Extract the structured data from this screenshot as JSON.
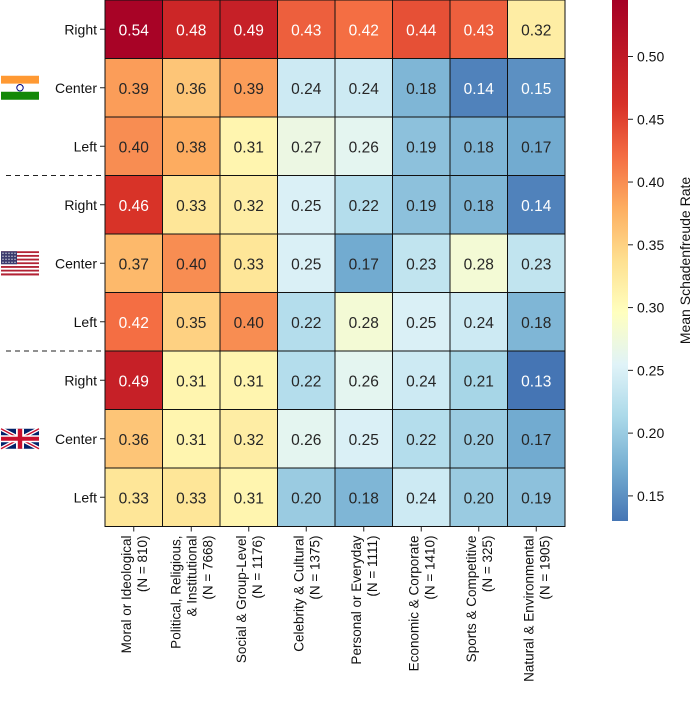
{
  "chart_data": {
    "type": "heatmap",
    "title": "",
    "columns": [
      {
        "label": "Moral or Ideological",
        "n_label": "(N = 810)"
      },
      {
        "label": "Political, Religious,\n& Institutional",
        "n_label": "(N = 7668)"
      },
      {
        "label": "Social & Group-Level",
        "n_label": "(N = 1176)"
      },
      {
        "label": "Celebrity & Cultural",
        "n_label": "(N = 1375)"
      },
      {
        "label": "Personal or Everyday",
        "n_label": "(N = 1111)"
      },
      {
        "label": "Economic & Corporate",
        "n_label": "(N = 1410)"
      },
      {
        "label": "Sports & Competitive",
        "n_label": "(N = 325)"
      },
      {
        "label": "Natural & Environmental",
        "n_label": "(N = 1905)"
      }
    ],
    "groups": [
      {
        "country": "India",
        "flag_icon": "india-flag-icon",
        "rows": [
          {
            "label": "Right",
            "values": [
              0.54,
              0.48,
              0.49,
              0.43,
              0.42,
              0.44,
              0.43,
              0.32
            ]
          },
          {
            "label": "Center",
            "values": [
              0.39,
              0.36,
              0.39,
              0.24,
              0.24,
              0.18,
              0.14,
              0.15
            ]
          },
          {
            "label": "Left",
            "values": [
              0.4,
              0.38,
              0.31,
              0.27,
              0.26,
              0.19,
              0.18,
              0.17
            ]
          }
        ]
      },
      {
        "country": "United States",
        "flag_icon": "us-flag-icon",
        "rows": [
          {
            "label": "Right",
            "values": [
              0.46,
              0.33,
              0.32,
              0.25,
              0.22,
              0.19,
              0.18,
              0.14
            ]
          },
          {
            "label": "Center",
            "values": [
              0.37,
              0.4,
              0.33,
              0.25,
              0.17,
              0.23,
              0.28,
              0.23
            ]
          },
          {
            "label": "Left",
            "values": [
              0.42,
              0.35,
              0.4,
              0.22,
              0.28,
              0.25,
              0.24,
              0.18
            ]
          }
        ]
      },
      {
        "country": "United Kingdom",
        "flag_icon": "uk-flag-icon",
        "rows": [
          {
            "label": "Right",
            "values": [
              0.49,
              0.31,
              0.31,
              0.22,
              0.26,
              0.24,
              0.21,
              0.13
            ]
          },
          {
            "label": "Center",
            "values": [
              0.36,
              0.31,
              0.32,
              0.26,
              0.25,
              0.22,
              0.2,
              0.17
            ]
          },
          {
            "label": "Left",
            "values": [
              0.33,
              0.33,
              0.31,
              0.2,
              0.18,
              0.24,
              0.2,
              0.19
            ]
          }
        ]
      }
    ],
    "colorbar": {
      "label": "Mean Schadenfreude Rate",
      "vmin": 0.13,
      "vmax": 0.545,
      "ticks": [
        0.15,
        0.2,
        0.25,
        0.3,
        0.35,
        0.4,
        0.45,
        0.5
      ],
      "tick_labels": [
        "0.15",
        "0.20",
        "0.25",
        "0.30",
        "0.35",
        "0.40",
        "0.45",
        "0.50"
      ],
      "colormap": "RdYlBu_r"
    },
    "value_format": "2 decimals",
    "group_separator": "dashed"
  }
}
